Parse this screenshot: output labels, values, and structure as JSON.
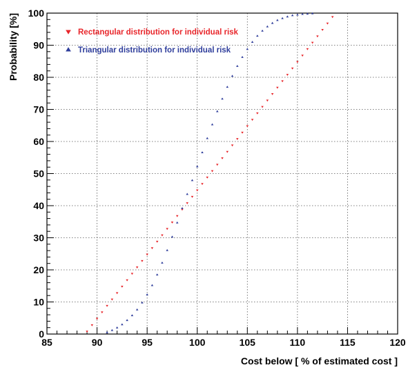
{
  "chart_data": {
    "type": "scatter",
    "xlabel": "Cost below [ % of estimated cost ]",
    "ylabel": "Probability [%]",
    "xlim": [
      85,
      120
    ],
    "ylim": [
      0,
      100
    ],
    "x_ticks": [
      "85",
      "90",
      "95",
      "100",
      "105",
      "110",
      "115",
      "120"
    ],
    "y_ticks": [
      "0",
      "10",
      "20",
      "30",
      "40",
      "50",
      "60",
      "70",
      "80",
      "90",
      "100"
    ],
    "grid": true,
    "legend_position": "top-left",
    "series": [
      {
        "name": "Rectangular distribution for individual risk",
        "color": "#e8262b",
        "marker": "triangle-down",
        "x": [
          89.0,
          89.5,
          90.0,
          90.5,
          91.0,
          91.5,
          92.0,
          92.5,
          93.0,
          93.5,
          94.0,
          94.5,
          95.0,
          95.5,
          96.0,
          96.5,
          97.0,
          97.5,
          98.0,
          98.5,
          99.0,
          99.5,
          100.0,
          100.5,
          101.0,
          101.5,
          102.0,
          102.5,
          103.0,
          103.5,
          104.0,
          104.5,
          105.0,
          105.5,
          106.0,
          106.5,
          107.0,
          107.5,
          108.0,
          108.5,
          109.0,
          109.5,
          110.0,
          110.5,
          111.0,
          111.5,
          112.0,
          112.5,
          113.0,
          113.5
        ],
        "y": [
          0.8,
          2.8,
          4.8,
          6.8,
          8.8,
          10.8,
          12.8,
          14.8,
          16.8,
          18.8,
          20.8,
          22.8,
          24.8,
          26.8,
          28.8,
          30.8,
          32.8,
          34.8,
          36.8,
          38.8,
          40.8,
          42.8,
          44.8,
          46.8,
          48.8,
          50.8,
          52.8,
          54.8,
          56.8,
          58.8,
          60.8,
          62.8,
          64.8,
          66.8,
          68.8,
          70.8,
          72.8,
          74.8,
          76.8,
          78.8,
          80.8,
          82.8,
          84.8,
          86.8,
          88.8,
          90.8,
          92.8,
          94.8,
          96.8,
          98.8
        ]
      },
      {
        "name": "Triangular distribution for individual risk",
        "color": "#2e3d9b",
        "marker": "triangle-up",
        "x": [
          91.0,
          91.5,
          92.0,
          92.5,
          93.0,
          93.5,
          94.0,
          94.5,
          95.0,
          95.5,
          96.0,
          96.5,
          97.0,
          97.5,
          98.0,
          98.5,
          99.0,
          99.5,
          100.0,
          100.5,
          101.0,
          101.5,
          102.0,
          102.5,
          103.0,
          103.5,
          104.0,
          104.5,
          105.0,
          105.5,
          106.0,
          106.5,
          107.0,
          107.5,
          108.0,
          108.5,
          109.0,
          109.5,
          110.0,
          110.5,
          111.0,
          111.5
        ],
        "y": [
          0.5,
          1.2,
          2.0,
          3.0,
          4.3,
          5.8,
          7.6,
          9.8,
          12.3,
          15.2,
          18.5,
          22.2,
          26.1,
          30.3,
          34.7,
          39.2,
          43.6,
          47.9,
          52.2,
          56.6,
          61.0,
          65.3,
          69.4,
          73.3,
          77.0,
          80.4,
          83.5,
          86.3,
          88.8,
          91.0,
          92.9,
          94.5,
          95.8,
          96.9,
          97.8,
          98.4,
          98.9,
          99.3,
          99.5,
          99.7,
          99.8,
          99.9
        ]
      }
    ]
  }
}
